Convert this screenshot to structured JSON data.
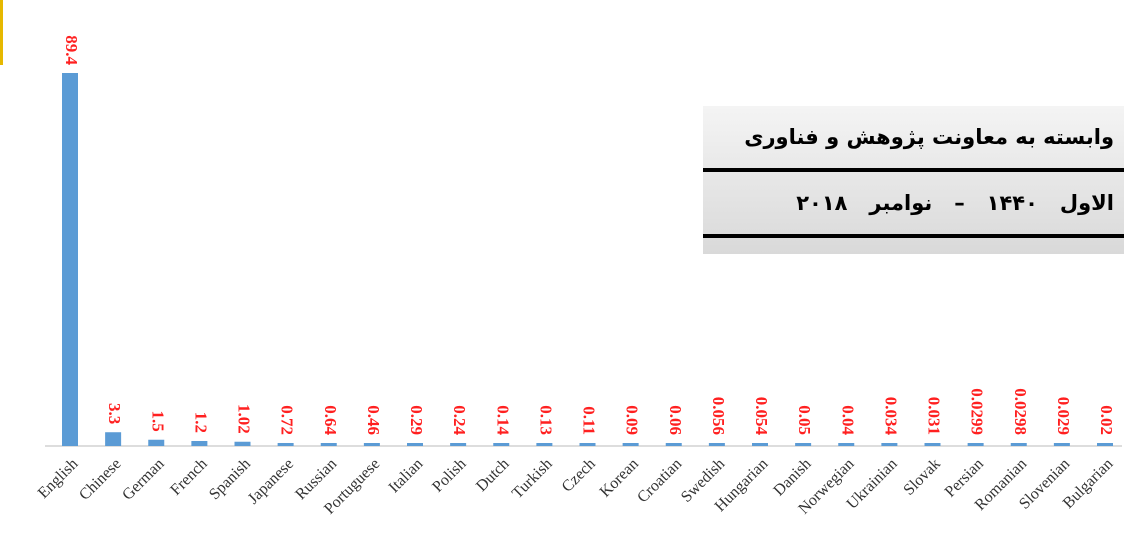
{
  "chart_data": {
    "type": "bar",
    "categories": [
      "English",
      "Chinese",
      "German",
      "French",
      "Spanish",
      "Japanese",
      "Russian",
      "Portuguese",
      "Italian",
      "Polish",
      "Dutch",
      "Turkish",
      "Czech",
      "Korean",
      "Croatian",
      "Swedish",
      "Hungarian",
      "Danish",
      "Norwegian",
      "Ukrainian",
      "Slovak",
      "Persian",
      "Romanian",
      "Slovenian",
      "Bulgarian"
    ],
    "values": [
      89.4,
      3.3,
      1.5,
      1.2,
      1.02,
      0.72,
      0.64,
      0.46,
      0.29,
      0.24,
      0.14,
      0.13,
      0.11,
      0.09,
      0.06,
      0.056,
      0.054,
      0.05,
      0.04,
      0.034,
      0.031,
      0.0299,
      0.0298,
      0.029,
      0.02
    ],
    "color": "#5b9bd5",
    "annotations": [
      "وابسته به معاونت پژوهش و فناوری",
      "الاول   ۱۴۴۰   –   نوامبر   ۲۰۱۸"
    ]
  }
}
